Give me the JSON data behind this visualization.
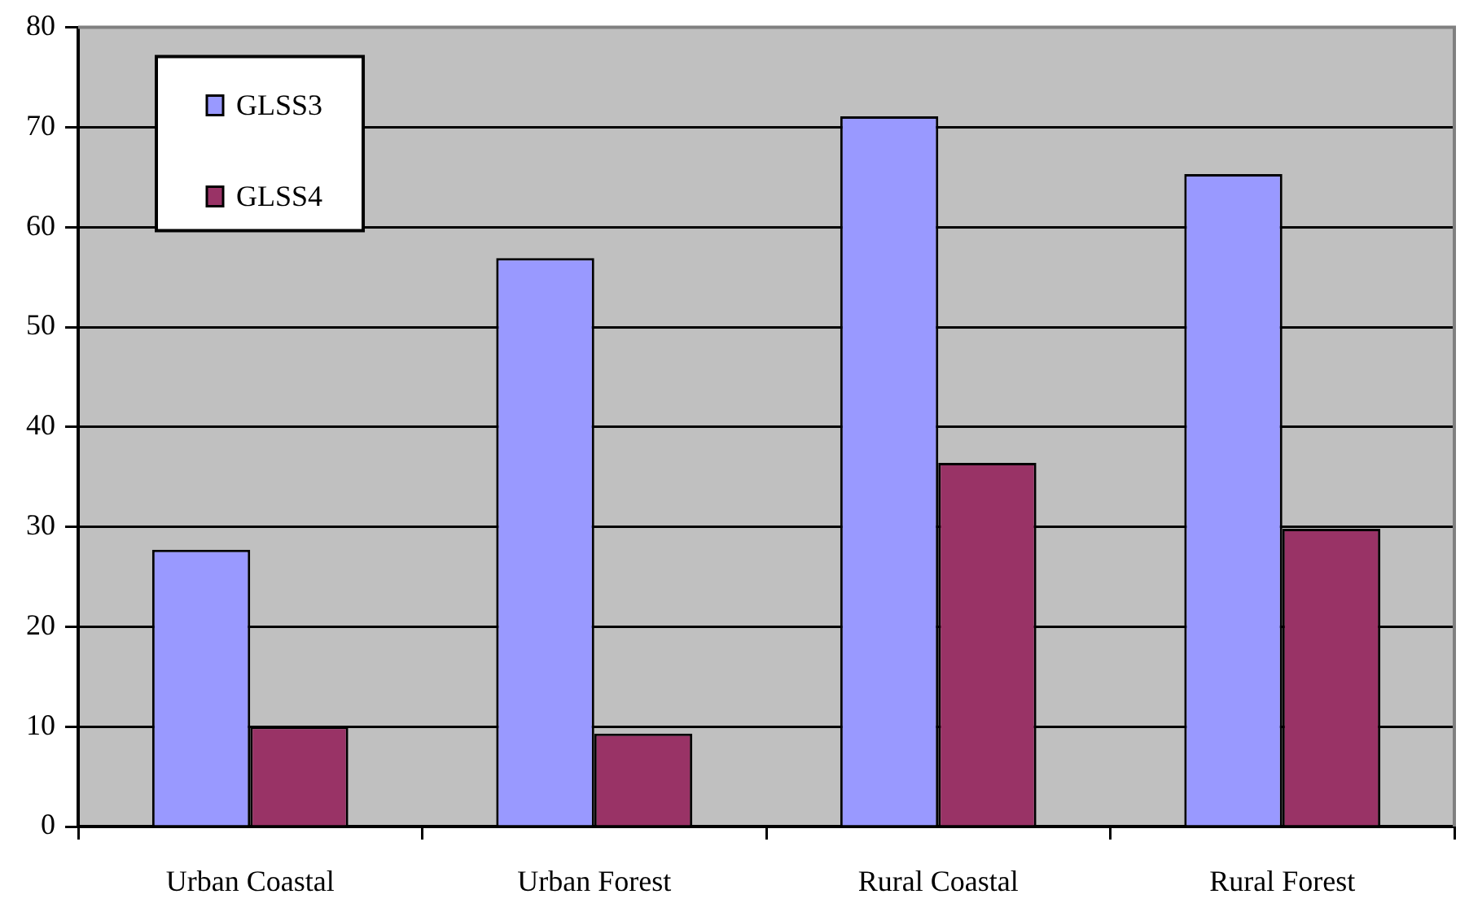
{
  "chart_data": {
    "type": "bar",
    "categories": [
      "Urban Coastal",
      "Urban Forest",
      "Rural Coastal",
      "Rural Forest"
    ],
    "series": [
      {
        "name": "GLSS3",
        "color": "#9999ff",
        "values": [
          27.7,
          56.9,
          71.1,
          65.3
        ]
      },
      {
        "name": "GLSS4",
        "color": "#993366",
        "values": [
          10.0,
          9.3,
          36.4,
          29.8
        ]
      }
    ],
    "ylim": [
      0,
      80
    ],
    "yticks": [
      0,
      10,
      20,
      30,
      40,
      50,
      60,
      70,
      80
    ],
    "grid": "y",
    "legend": "top left"
  }
}
